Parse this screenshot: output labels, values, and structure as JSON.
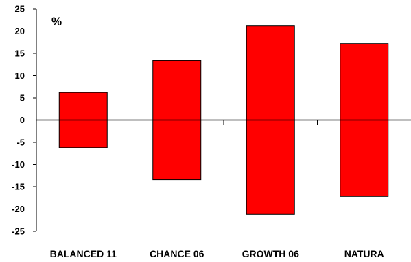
{
  "chart_data": {
    "type": "bar",
    "title": "",
    "xlabel": "",
    "ylabel": "%",
    "ylim": [
      -25,
      25
    ],
    "yticks": [
      25,
      20,
      15,
      10,
      5,
      0,
      -5,
      -10,
      -15,
      -20,
      -25
    ],
    "categories": [
      "BALANCED 11",
      "CHANCE 06",
      "GROWTH 06",
      "NATURA"
    ],
    "series": [
      {
        "values_upper": [
          6.2,
          13.4,
          21.2,
          17.2
        ],
        "values_lower": [
          -6.2,
          -13.4,
          -21.2,
          -17.2
        ]
      }
    ],
    "grid": false,
    "legend": "none",
    "colors": {
      "bar": "#ff0000",
      "bar_stroke": "#000000",
      "axis": "#000000"
    }
  }
}
